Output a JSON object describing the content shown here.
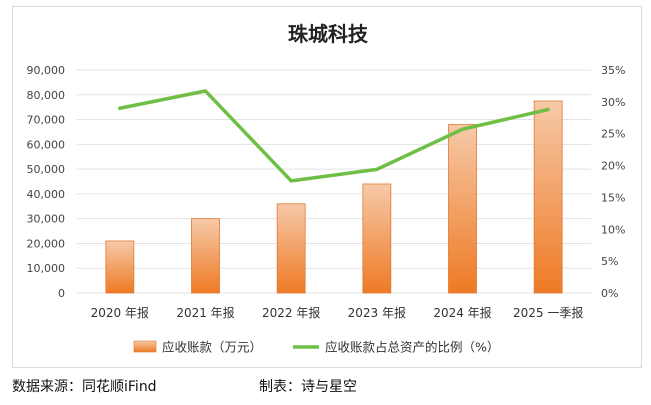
{
  "chart_data": {
    "type": "bar+line",
    "title": "珠城科技",
    "categories": [
      "2020 年报",
      "2021 年报",
      "2022 年报",
      "2023 年报",
      "2024 年报",
      "2025 一季报"
    ],
    "series": [
      {
        "name": "应收账款（万元）",
        "type": "bar",
        "axis": "left",
        "values": [
          21000,
          30000,
          36000,
          44000,
          68000,
          77500
        ]
      },
      {
        "name": "应收账款占总资产的比例（%）",
        "type": "line",
        "axis": "right",
        "values": [
          29.0,
          31.7,
          17.6,
          19.4,
          25.7,
          28.8
        ]
      }
    ],
    "ylim_left": [
      0,
      90000
    ],
    "yticks_left": [
      "0",
      "10,000",
      "20,000",
      "30,000",
      "40,000",
      "50,000",
      "60,000",
      "70,000",
      "80,000",
      "90,000"
    ],
    "ylim_right": [
      0,
      35
    ],
    "yticks_right": [
      "0%",
      "5%",
      "10%",
      "15%",
      "20%",
      "25%",
      "30%",
      "35%"
    ],
    "grid": true,
    "legend_position": "bottom",
    "colors": {
      "bar_top": "#f6c9a8",
      "bar_bottom": "#ee7a24",
      "line": "#6fbf45",
      "grid": "#e3e3e3"
    }
  },
  "footer": {
    "source": "数据来源：同花顺iFind",
    "maker": "制表：诗与星空"
  }
}
